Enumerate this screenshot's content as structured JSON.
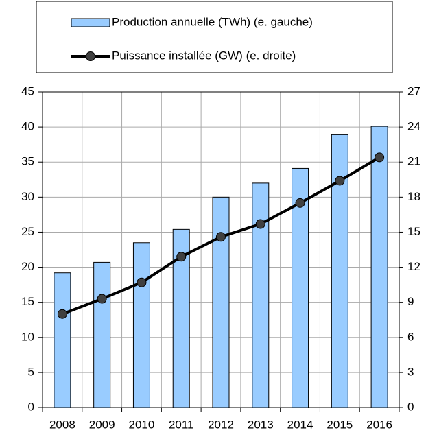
{
  "chart_data": {
    "type": "bar-line",
    "categories": [
      "2008",
      "2009",
      "2010",
      "2011",
      "2012",
      "2013",
      "2014",
      "2015",
      "2016"
    ],
    "series": [
      {
        "name": "Production annuelle (TWh) (e. gauche)",
        "type": "bar",
        "color": "#99ccff",
        "values": [
          19.2,
          20.7,
          23.5,
          25.4,
          30.0,
          32.0,
          34.1,
          38.9,
          40.1
        ]
      },
      {
        "name": "Puissance installée (GW) (e. droite)",
        "type": "line",
        "axis": "y2",
        "color": "#000000",
        "values": [
          8.0,
          9.3,
          10.7,
          12.9,
          14.6,
          15.7,
          17.5,
          19.4,
          21.4
        ]
      }
    ],
    "ylim": [
      0,
      45
    ],
    "yticks": [
      0,
      5,
      10,
      15,
      20,
      25,
      30,
      35,
      40,
      45
    ],
    "y2lim": [
      0,
      27
    ],
    "y2ticks": [
      0,
      3,
      6,
      9,
      12,
      15,
      18,
      21,
      24,
      27
    ],
    "grid": true
  }
}
